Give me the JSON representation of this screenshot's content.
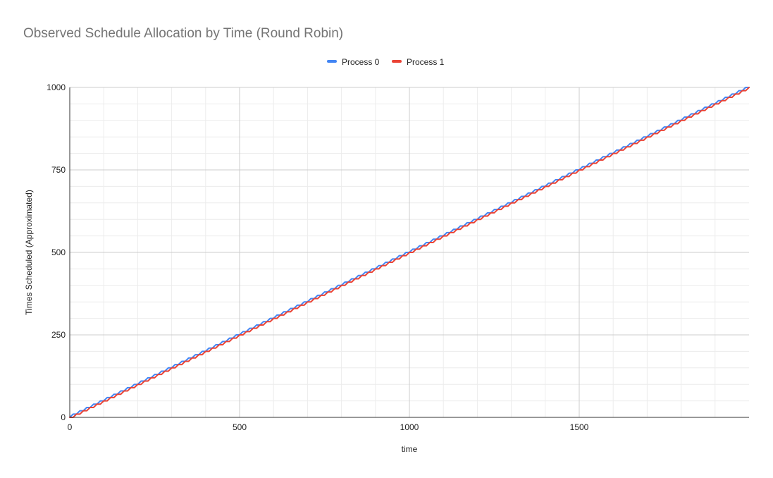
{
  "chart_data": {
    "type": "line",
    "title": "Observed Schedule Allocation by Time (Round Robin)",
    "xlabel": "time",
    "ylabel": "Times Scheduled (Approximated)",
    "xlim": [
      0,
      2000
    ],
    "ylim": [
      0,
      1000
    ],
    "x_ticks": [
      "0",
      "500",
      "1000",
      "1500"
    ],
    "y_ticks": [
      "0",
      "250",
      "500",
      "750",
      "1000"
    ],
    "grid": true,
    "legend_position": "top",
    "series": [
      {
        "name": "Process 0",
        "color": "#4285f4",
        "x": [
          0,
          10,
          20,
          30,
          40,
          50,
          60,
          70,
          80,
          90,
          100,
          2000
        ],
        "y": [
          0,
          10,
          10,
          20,
          20,
          30,
          30,
          40,
          40,
          50,
          50,
          1000
        ],
        "note_pattern": "staircase: +10 every 20 time units, leading"
      },
      {
        "name": "Process 1",
        "color": "#ea4335",
        "x": [
          0,
          10,
          20,
          30,
          40,
          50,
          60,
          70,
          80,
          90,
          100,
          2000
        ],
        "y": [
          0,
          0,
          10,
          10,
          20,
          20,
          30,
          30,
          40,
          40,
          50,
          1000
        ],
        "note_pattern": "staircase: +10 every 20 time units, lagging"
      }
    ]
  }
}
